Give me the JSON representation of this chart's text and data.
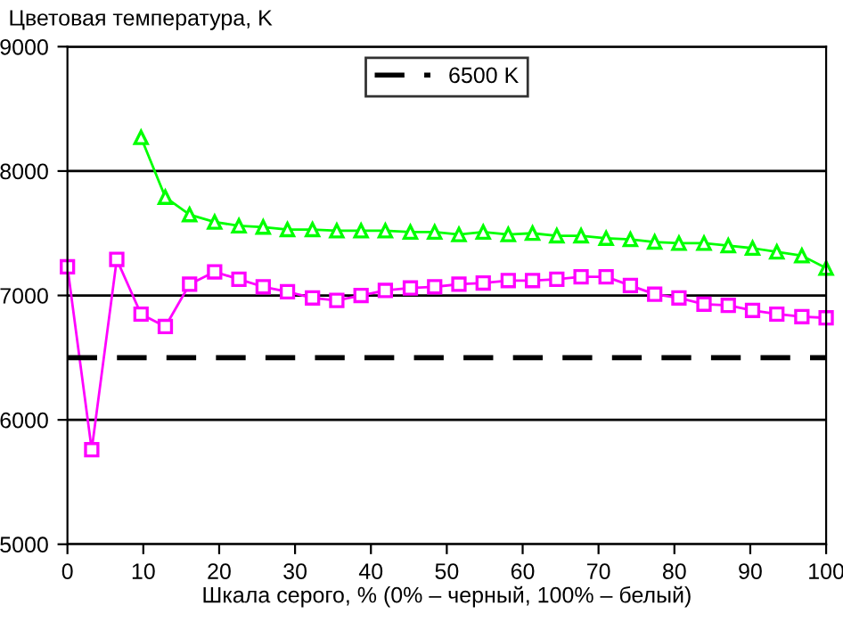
{
  "chart_data": {
    "type": "line",
    "ylabel": "Цветовая температура, K",
    "xlabel": "Шкала серого, % (0% – черный, 100% – белый)",
    "x": [
      0,
      3.2,
      6.5,
      9.7,
      12.9,
      16.1,
      19.4,
      22.6,
      25.8,
      29.0,
      32.3,
      35.5,
      38.7,
      41.9,
      45.2,
      48.4,
      51.6,
      54.8,
      58.1,
      61.3,
      64.5,
      67.7,
      71.0,
      74.2,
      77.4,
      80.6,
      83.9,
      87.1,
      90.3,
      93.5,
      96.8,
      100
    ],
    "series": [
      {
        "color": "#ff00ff",
        "marker": "square",
        "values": [
          7230,
          5760,
          7290,
          6850,
          6750,
          7090,
          7190,
          7130,
          7070,
          7030,
          6980,
          6960,
          7000,
          7040,
          7060,
          7070,
          7090,
          7100,
          7120,
          7120,
          7130,
          7150,
          7150,
          7080,
          7010,
          6980,
          6930,
          6920,
          6880,
          6850,
          6830,
          6820
        ]
      },
      {
        "color": "#00ff00",
        "marker": "triangle",
        "values": [
          null,
          null,
          null,
          8270,
          7790,
          7650,
          7590,
          7560,
          7550,
          7530,
          7530,
          7520,
          7520,
          7520,
          7510,
          7510,
          7490,
          7510,
          7490,
          7500,
          7480,
          7480,
          7460,
          7450,
          7430,
          7420,
          7420,
          7400,
          7380,
          7350,
          7320,
          7220
        ]
      }
    ],
    "ref_lines": [
      {
        "axis": "y",
        "value": 6500,
        "label": "6500 K",
        "color": "#000000",
        "line_style": "dashed"
      }
    ],
    "xlim": [
      0,
      100
    ],
    "xticks": [
      0,
      10,
      20,
      30,
      40,
      50,
      60,
      70,
      80,
      90,
      100
    ],
    "ylim": [
      5000,
      9000
    ],
    "yticks": [
      5000,
      6000,
      7000,
      8000,
      9000
    ],
    "grid": "y",
    "legend": "top"
  }
}
